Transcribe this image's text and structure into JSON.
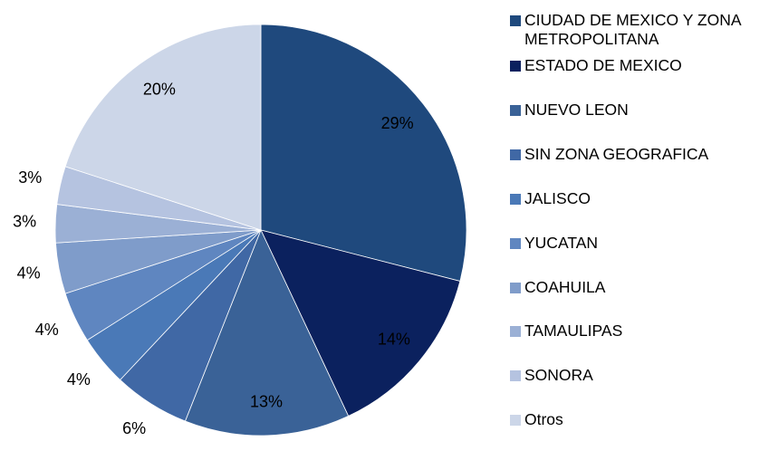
{
  "chart_data": {
    "type": "pie",
    "categories": [
      "CIUDAD DE MEXICO Y ZONA METROPOLITANA",
      "ESTADO DE MEXICO",
      "NUEVO LEON",
      "SIN ZONA GEOGRAFICA",
      "JALISCO",
      "YUCATAN",
      "COAHUILA",
      "TAMAULIPAS",
      "SONORA",
      "Otros"
    ],
    "values": [
      29,
      14,
      13,
      6,
      4,
      4,
      4,
      3,
      3,
      20
    ],
    "value_labels": [
      "29%",
      "14%",
      "13%",
      "6%",
      "4%",
      "4%",
      "4%",
      "3%",
      "3%",
      "20%"
    ],
    "colors": [
      "#1f497d",
      "#0b215e",
      "#3a6297",
      "#4068a5",
      "#4a79b7",
      "#5f86c0",
      "#7f9cca",
      "#9bb0d5",
      "#b5c3e0",
      "#ccd6e8"
    ],
    "legend": "right"
  }
}
